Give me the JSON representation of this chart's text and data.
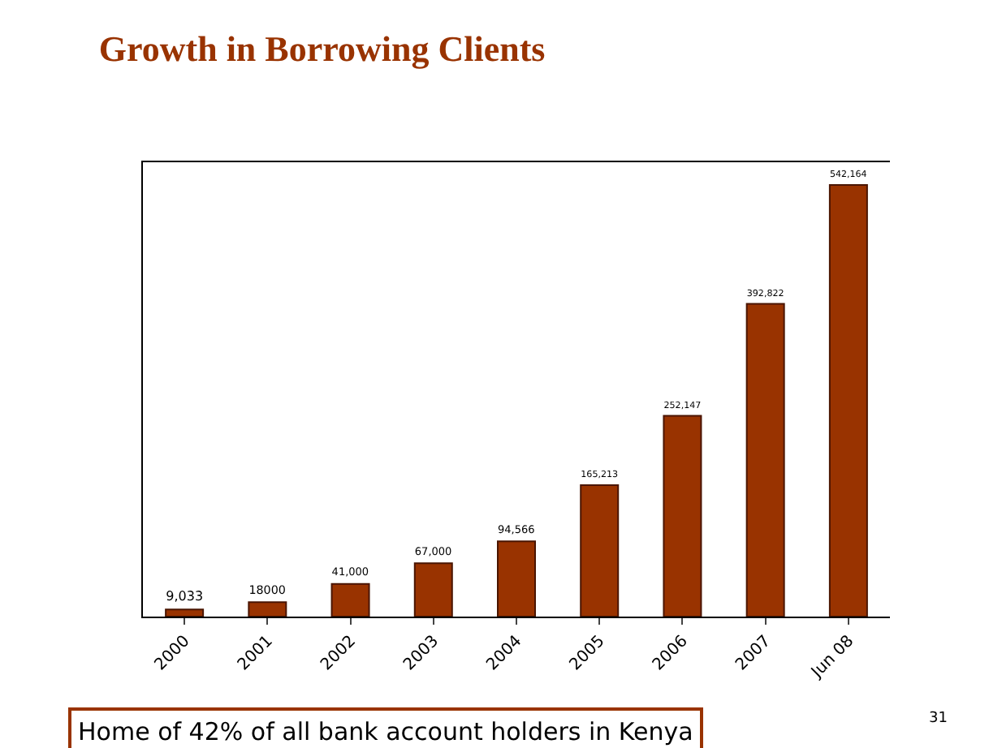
{
  "chart_data": {
    "type": "bar",
    "title": "Growth in Borrowing Clients",
    "categories": [
      "2000",
      "2001",
      "2002",
      "2003",
      "2004",
      "2005",
      "2006",
      "2007",
      "Jun 08"
    ],
    "series": [
      {
        "color": "#993300",
        "values": [
          9033,
          18000,
          41000,
          67000,
          94566,
          165213,
          252147,
          392822,
          542164
        ],
        "value_labels": [
          "9,033",
          "18000",
          "41,000",
          "67,000",
          "94,566",
          "165,213",
          "252,147",
          "392,822",
          "542,164"
        ]
      }
    ],
    "tick_labels": "x",
    "legend": false,
    "annotations": [
      "Home of 42% of all bank account holders in Kenya",
      "31"
    ]
  }
}
